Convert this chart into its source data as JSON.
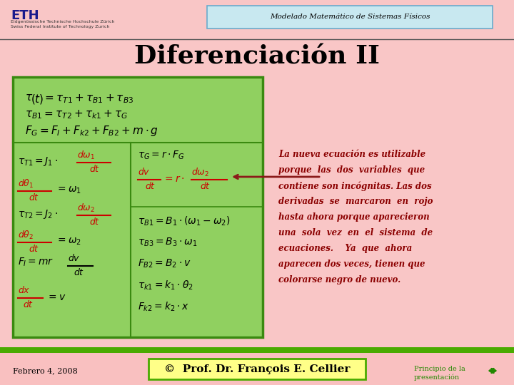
{
  "bg_color": "#f9c6c6",
  "header_bg": "#c8e8f0",
  "header_border": "#6aabcc",
  "title_text": "Diferenciación II",
  "header_title": "Modelado Matemático de Sistemas Físicos",
  "green_box_color": "#90d060",
  "green_box_border": "#3a8a10",
  "footer_bg": "#f9c6c6",
  "footer_date": "Febrero 4, 2008",
  "footer_center": "©  Prof. Dr. François E. Cellier",
  "footer_right1": "Principio de la",
  "footer_right2": "presentación",
  "eq_top1": "τ (t) = τ_{T1} + τ_{B1} + τ_{B3}",
  "eq_top2": "τ_{B1} = τ_{T2} + τ_{k1} + τ_G",
  "eq_top3": "F_G = F_I + F_{k2} + F_{B2} + m · g",
  "comment_text": [
    "La nueva ecuación es utilizable",
    "porque  las  dos  variables  que",
    "contiene son incógnitas. Las dos",
    "derivadas  se  marcaron  en  rojo",
    "hasta ahora porque aparecieron",
    "una  sola  vez  en  el  sistema  de",
    "ecuaciones.    Ya  que  ahora",
    "aparecen dos veces, tienen que",
    "colorarse negro de nuevo."
  ]
}
